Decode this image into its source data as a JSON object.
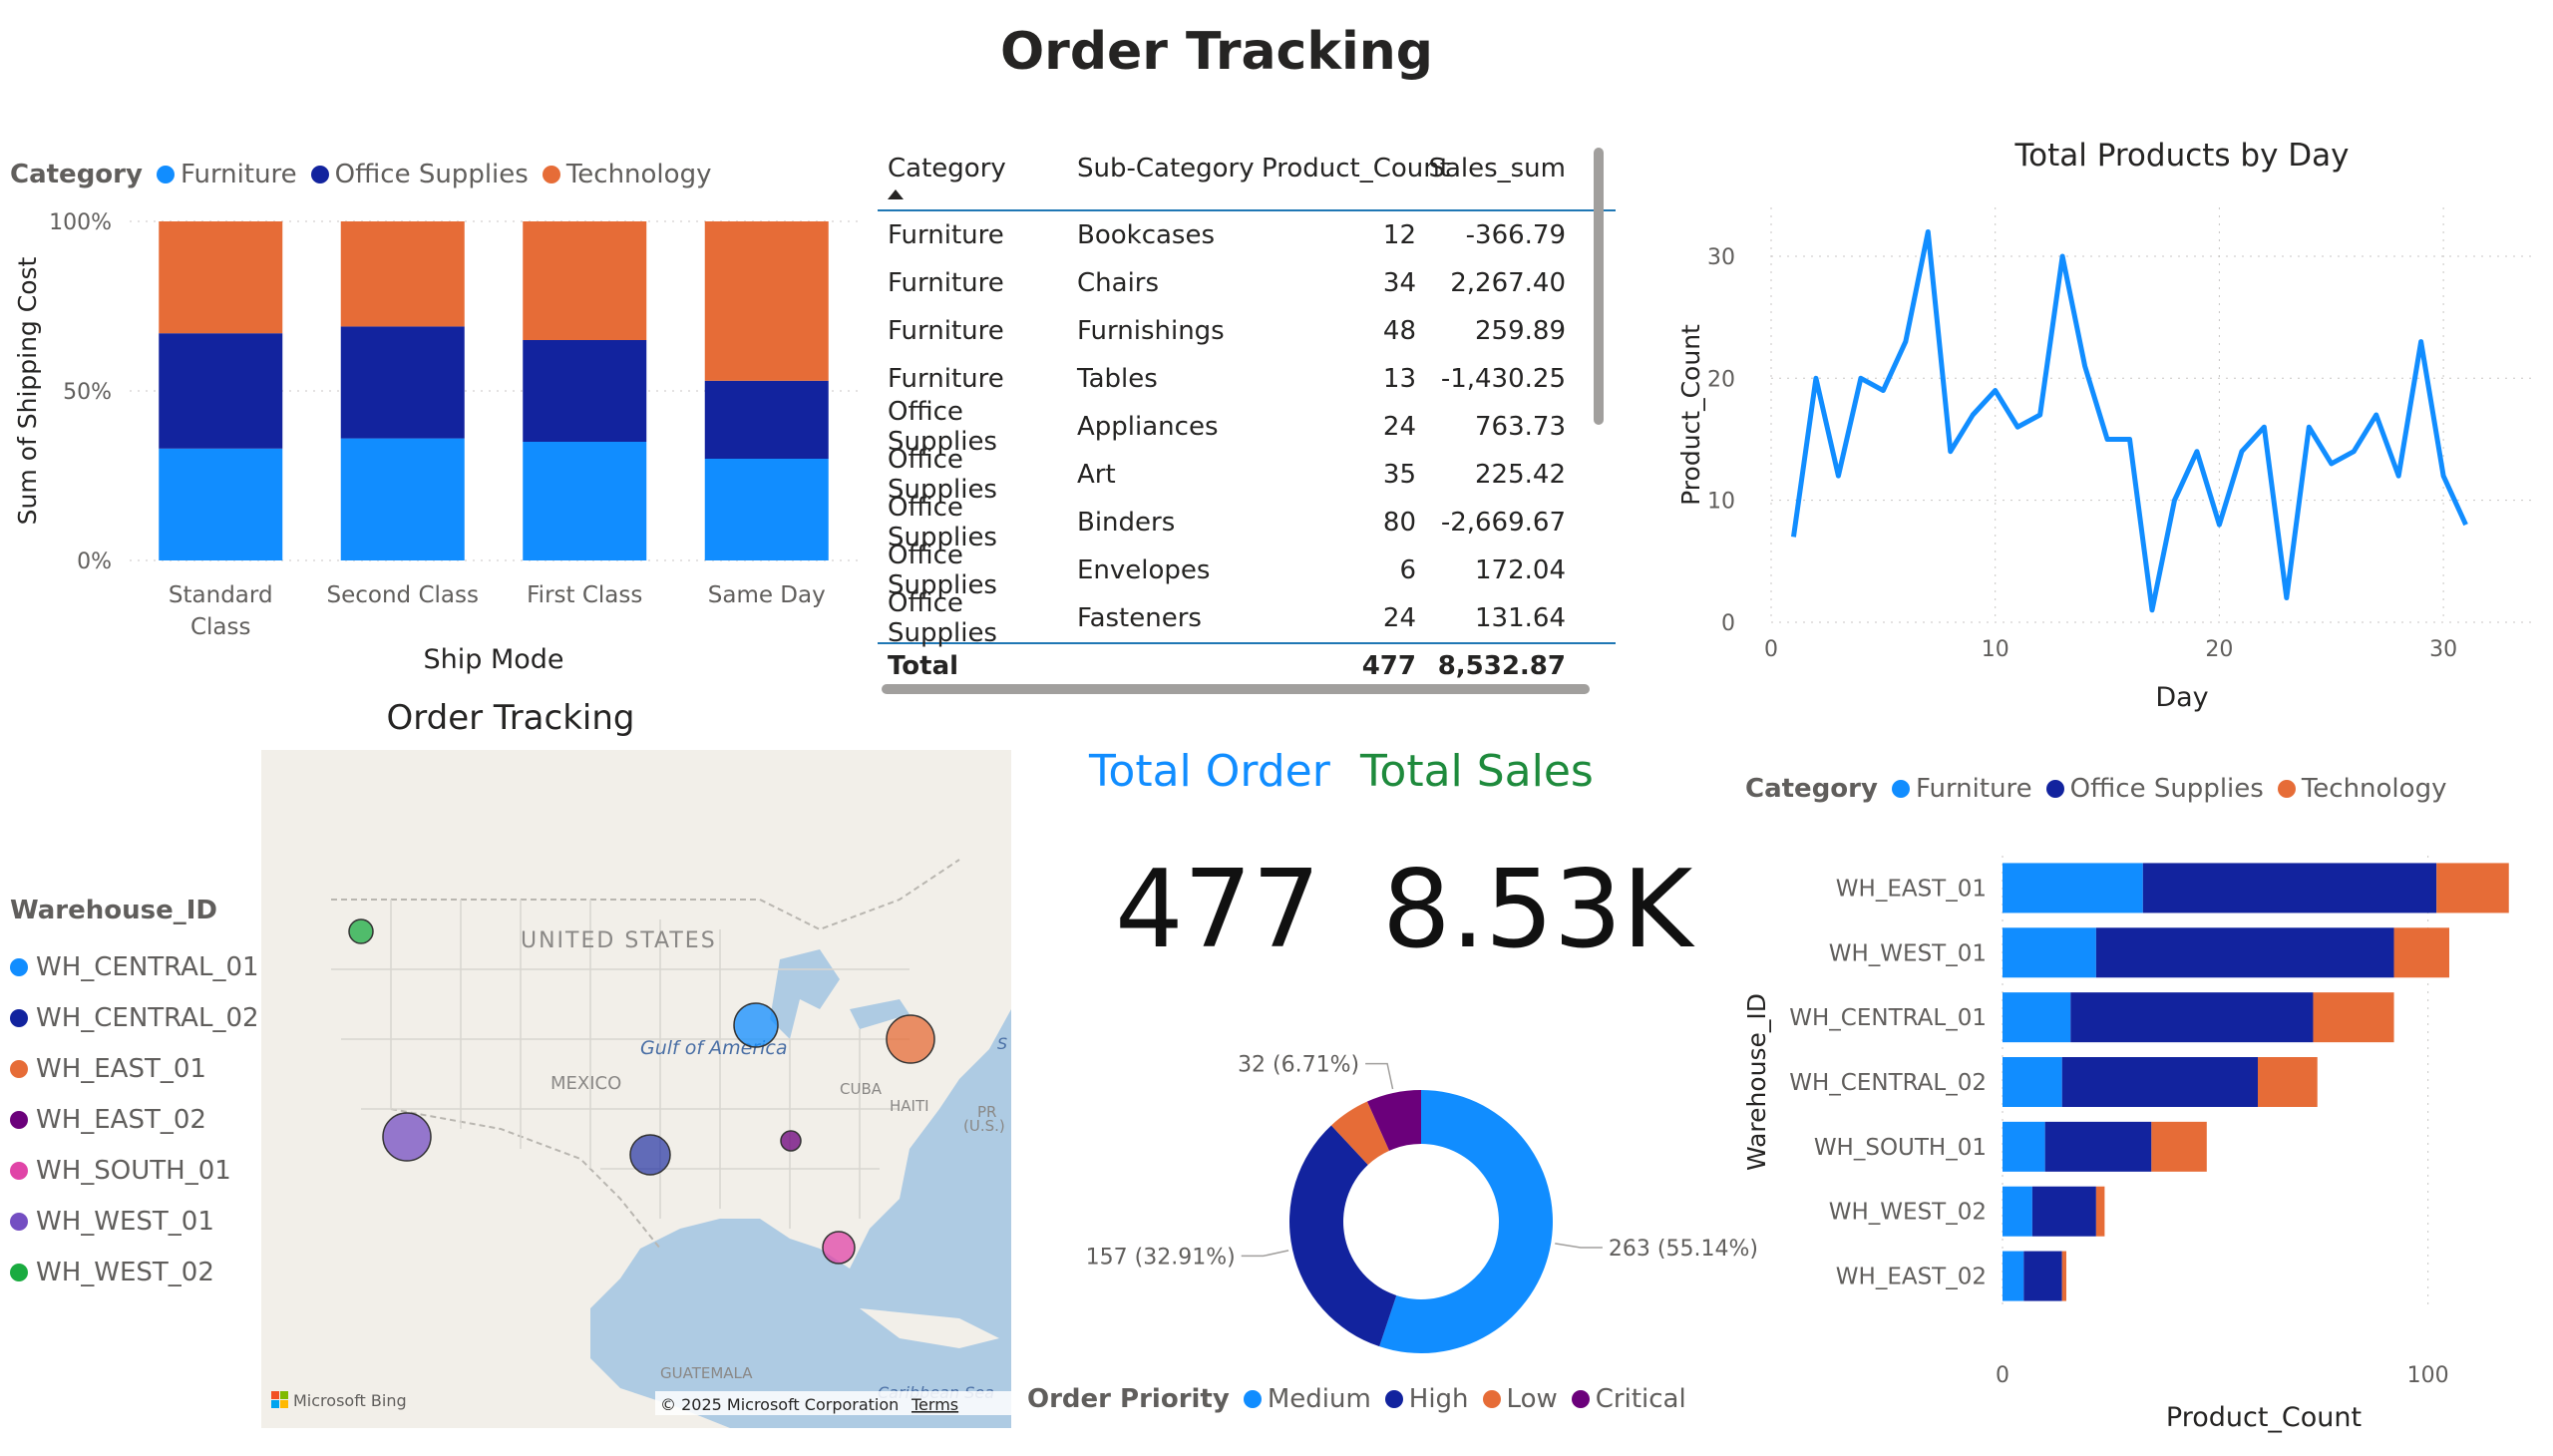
{
  "page_title": "Order Tracking",
  "colors": {
    "furniture": "#118dff",
    "office_supplies": "#12239e",
    "technology": "#e66c37",
    "medium": "#118dff",
    "high": "#12239e",
    "low": "#e66c37",
    "critical": "#6b007b"
  },
  "legend": {
    "category_title": "Category",
    "items": [
      "Furniture",
      "Office Supplies",
      "Technology"
    ]
  },
  "chart_data": [
    {
      "type": "bar",
      "stacked": "100%",
      "categories": [
        "Standard Class",
        "Second Class",
        "First Class",
        "Same Day"
      ],
      "series": [
        {
          "name": "Furniture",
          "values": [
            33,
            36,
            35,
            30
          ]
        },
        {
          "name": "Office Supplies",
          "values": [
            34,
            33,
            30,
            23
          ]
        },
        {
          "name": "Technology",
          "values": [
            33,
            31,
            35,
            47
          ]
        }
      ],
      "xlabel": "Ship Mode",
      "ylabel": "Sum of Shipping Cost",
      "yticks": [
        "0%",
        "50%",
        "100%"
      ],
      "ylim": [
        0,
        100
      ],
      "legend_position": "top-left"
    },
    {
      "type": "line",
      "title": "Total Products by Day",
      "xlabel": "Day",
      "ylabel": "Product_Count",
      "x": [
        1,
        2,
        3,
        4,
        5,
        6,
        7,
        8,
        9,
        10,
        11,
        12,
        13,
        14,
        15,
        16,
        17,
        18,
        19,
        20,
        21,
        22,
        23,
        24,
        25,
        26,
        27,
        28,
        29,
        30,
        31
      ],
      "values": [
        7,
        20,
        12,
        20,
        19,
        23,
        32,
        14,
        17,
        19,
        16,
        17,
        30,
        21,
        15,
        15,
        1,
        10,
        14,
        8,
        14,
        16,
        2,
        16,
        13,
        14,
        17,
        12,
        23,
        12,
        8
      ],
      "xticks": [
        0,
        10,
        20,
        30
      ],
      "yticks": [
        0,
        10,
        20,
        30
      ],
      "xlim": [
        0,
        34
      ],
      "ylim": [
        0,
        34
      ],
      "grid": true
    },
    {
      "type": "pie",
      "donut": true,
      "legend_title": "Order Priority",
      "categories": [
        "Medium",
        "High",
        "Low",
        "Critical"
      ],
      "values": [
        263,
        157,
        25,
        32
      ],
      "data_labels": [
        "263 (55.14%)",
        "157 (32.91%)",
        "",
        "32 (6.71%)"
      ],
      "legend_position": "bottom"
    },
    {
      "type": "bar",
      "orientation": "horizontal",
      "stacked": true,
      "categories": [
        "WH_EAST_01",
        "WH_WEST_01",
        "WH_CENTRAL_01",
        "WH_CENTRAL_02",
        "WH_SOUTH_01",
        "WH_WEST_02",
        "WH_EAST_02"
      ],
      "series": [
        {
          "name": "Furniture",
          "values": [
            33,
            22,
            16,
            14,
            10,
            7,
            5
          ]
        },
        {
          "name": "Office Supplies",
          "values": [
            69,
            70,
            57,
            46,
            25,
            15,
            9
          ]
        },
        {
          "name": "Technology",
          "values": [
            17,
            13,
            19,
            14,
            13,
            2,
            1
          ]
        }
      ],
      "xlabel": "Product_Count",
      "ylabel": "Warehouse_ID",
      "xticks": [
        0,
        100
      ],
      "xlim": [
        0,
        120
      ],
      "legend_position": "top-left"
    }
  ],
  "table": {
    "headers": [
      "Category",
      "Sub-Category",
      "Product_Count",
      "Sales_sum"
    ],
    "rows": [
      [
        "Furniture",
        "Bookcases",
        "12",
        "-366.79"
      ],
      [
        "Furniture",
        "Chairs",
        "34",
        "2,267.40"
      ],
      [
        "Furniture",
        "Furnishings",
        "48",
        "259.89"
      ],
      [
        "Furniture",
        "Tables",
        "13",
        "-1,430.25"
      ],
      [
        "Office Supplies",
        "Appliances",
        "24",
        "763.73"
      ],
      [
        "Office Supplies",
        "Art",
        "35",
        "225.42"
      ],
      [
        "Office Supplies",
        "Binders",
        "80",
        "-2,669.67"
      ],
      [
        "Office Supplies",
        "Envelopes",
        "6",
        "172.04"
      ],
      [
        "Office Supplies",
        "Fasteners",
        "24",
        "131.64"
      ]
    ],
    "total": [
      "Total",
      "",
      "477",
      "8,532.87"
    ]
  },
  "map": {
    "title": "Order Tracking",
    "legend_title": "Warehouse_ID",
    "legend_items": [
      {
        "label": "WH_CENTRAL_01",
        "color": "#118dff"
      },
      {
        "label": "WH_CENTRAL_02",
        "color": "#12239e"
      },
      {
        "label": "WH_EAST_01",
        "color": "#e66c37"
      },
      {
        "label": "WH_EAST_02",
        "color": "#6b007b"
      },
      {
        "label": "WH_SOUTH_01",
        "color": "#e044a7"
      },
      {
        "label": "WH_WEST_01",
        "color": "#744ec2"
      },
      {
        "label": "WH_WEST_02",
        "color": "#1aab40"
      }
    ],
    "labels": {
      "country": "UNITED STATES",
      "gulf": "Gulf of America",
      "mexico": "MEXICO",
      "cuba": "CUBA",
      "haiti": "HAITI",
      "pr": "PR",
      "us": "(U.S.)",
      "guatemala": "GUATEMALA",
      "caribbean": "Caribbean Sea",
      "edge_s": "S"
    },
    "bing": "Microsoft Bing",
    "copyright": "© 2025 Microsoft Corporation",
    "terms": "Terms"
  },
  "kpi": {
    "total_order_label": "Total Order",
    "total_order_value": "477",
    "total_order_color": "#118dff",
    "total_sales_label": "Total Sales",
    "total_sales_value": "8.53K",
    "total_sales_color": "#1e8a3c"
  }
}
